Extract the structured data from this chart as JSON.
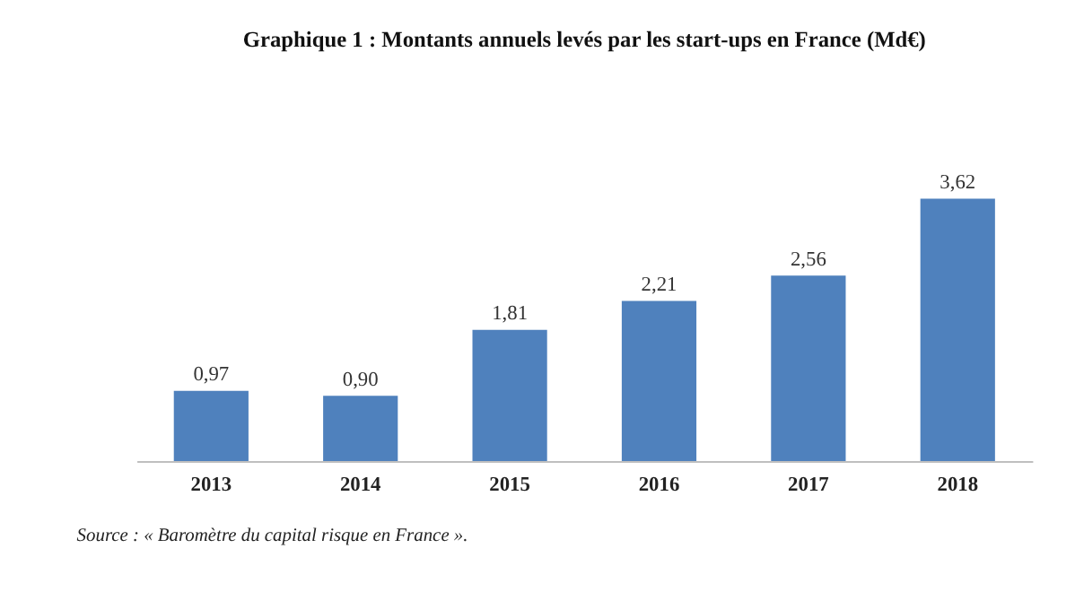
{
  "chart_data": {
    "type": "bar",
    "title": "Graphique 1 : Montants annuels levés par les start-ups en France (Md€)",
    "categories": [
      "2013",
      "2014",
      "2015",
      "2016",
      "2017",
      "2018"
    ],
    "values": [
      0.97,
      0.9,
      1.81,
      2.21,
      2.56,
      3.62
    ],
    "value_labels": [
      "0,97",
      "0,90",
      "1,81",
      "2,21",
      "2,56",
      "3,62"
    ],
    "color": "#4f81bd",
    "annotations": [
      "Source : « Baromètre du capital risque en France »."
    ]
  }
}
